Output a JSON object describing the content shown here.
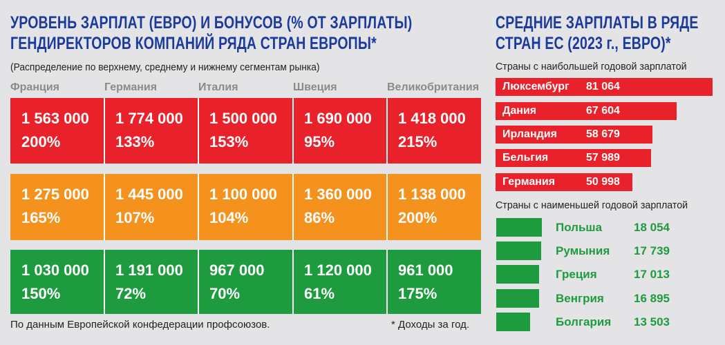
{
  "left": {
    "title_line1": "УРОВЕНЬ ЗАРПЛАТ (ЕВРО) И БОНУСОВ (% ОТ ЗАРПЛАТЫ)",
    "title_line2": "ГЕНДИРЕКТОРОВ КОМПАНИЙ РЯДА СТРАН ЕВРОПЫ*",
    "subtitle": "(Распределение по верхнему, среднему и нижнему сегментам рынка)",
    "footer_source": "По данным Европейской конфедерации профсоюзов.",
    "footer_note": "* Доходы за год."
  },
  "right": {
    "title_line1": "СРЕДНИЕ ЗАРПЛАТЫ В РЯДЕ",
    "title_line2": "СТРАН ЕС (2023 г., ЕВРО)*",
    "highest_label": "Страны с наибольшей годовой зарплатой",
    "lowest_label": "Страны с наименьшей годовой зарплатой"
  },
  "colors": {
    "title": "#1a3a9e",
    "upper": "#e8212a",
    "middle": "#f5921e",
    "lower": "#1e9b3f",
    "header_gray": "#8a8a8a"
  },
  "chart_data": [
    {
      "type": "table",
      "columns": [
        "Франция",
        "Германия",
        "Италия",
        "Швеция",
        "Великобритания"
      ],
      "rows": [
        {
          "segment_color": "#e8212a",
          "salaries": [
            "1 563 000",
            "1 774 000",
            "1 500 000",
            "1 690 000",
            "1 418 000"
          ],
          "bonuses": [
            "200%",
            "133%",
            "153%",
            "95%",
            "215%"
          ]
        },
        {
          "segment_color": "#f5921e",
          "salaries": [
            "1 275 000",
            "1 445 000",
            "1 100 000",
            "1 360 000",
            "1 138 000"
          ],
          "bonuses": [
            "165%",
            "107%",
            "104%",
            "86%",
            "200%"
          ]
        },
        {
          "segment_color": "#1e9b3f",
          "salaries": [
            "1 030 000",
            "1 191 000",
            "967 000",
            "1 120 000",
            "961 000"
          ],
          "bonuses": [
            "150%",
            "72%",
            "70%",
            "61%",
            "175%"
          ]
        }
      ]
    },
    {
      "type": "bar",
      "orientation": "horizontal",
      "categories": [
        "Люксембург",
        "Дания",
        "Ирландия",
        "Бельгия",
        "Германия"
      ],
      "values": [
        81064,
        67604,
        58679,
        57989,
        50998
      ],
      "value_labels": [
        "81 064",
        "67 604",
        "58 679",
        "57 989",
        "50 998"
      ],
      "color": "#e8212a"
    },
    {
      "type": "bar",
      "orientation": "horizontal",
      "categories": [
        "Польша",
        "Румыния",
        "Греция",
        "Венгрия",
        "Болгария"
      ],
      "values": [
        18054,
        17739,
        17013,
        16895,
        13503
      ],
      "value_labels": [
        "18 054",
        "17 739",
        "17 013",
        "16 895",
        "13 503"
      ],
      "color": "#1e9b3f"
    }
  ]
}
